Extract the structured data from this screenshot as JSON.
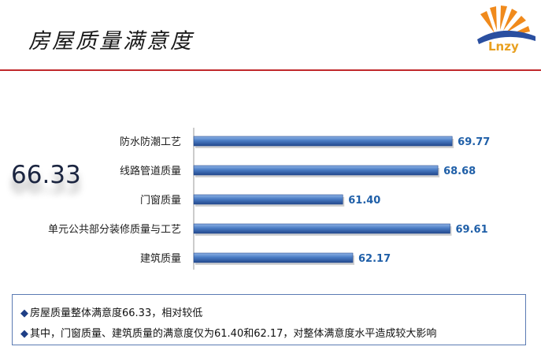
{
  "title": "房屋质量满意度",
  "overall_score": "66.33",
  "logo_text": "Lnzy",
  "colors": {
    "bar": "#4a7cc4",
    "bar_dark": "#23498e",
    "value": "#1f5fa8",
    "rule": "#c0282b"
  },
  "chart_data": {
    "type": "bar",
    "orientation": "horizontal",
    "categories": [
      "防水防潮工艺",
      "线路管道质量",
      "门窗质量",
      "单元公共部分装修质量与工艺",
      "建筑质量"
    ],
    "values": [
      69.77,
      68.68,
      61.4,
      69.61,
      62.17
    ],
    "value_labels": [
      "69.77",
      "68.68",
      "61.40",
      "69.61",
      "62.17"
    ],
    "xlim": [
      50,
      70
    ],
    "grid": false
  },
  "notes": [
    "房屋质量整体满意度66.33，相对较低",
    "其中，门窗质量、建筑质量的满意度仅为61.40和62.17，对整体满意度水平造成较大影响"
  ],
  "bullet": "◆"
}
